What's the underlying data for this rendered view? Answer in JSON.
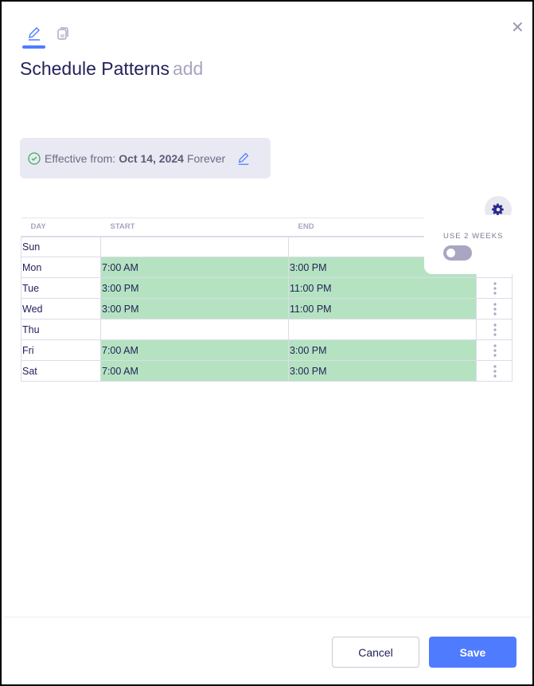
{
  "header": {
    "title": "Schedule Patterns",
    "subtitle": "add"
  },
  "effective": {
    "label": "Effective from:",
    "date": "Oct 14, 2024",
    "duration": "Forever"
  },
  "table": {
    "columns": [
      "DAY",
      "START",
      "END"
    ],
    "rows": [
      {
        "day": "Sun",
        "start": "",
        "end": ""
      },
      {
        "day": "Mon",
        "start": "7:00 AM",
        "end": "3:00 PM"
      },
      {
        "day": "Tue",
        "start": "3:00 PM",
        "end": "11:00 PM"
      },
      {
        "day": "Wed",
        "start": "3:00 PM",
        "end": "11:00 PM"
      },
      {
        "day": "Thu",
        "start": "",
        "end": ""
      },
      {
        "day": "Fri",
        "start": "7:00 AM",
        "end": "3:00 PM"
      },
      {
        "day": "Sat",
        "start": "7:00 AM",
        "end": "3:00 PM"
      }
    ]
  },
  "settings": {
    "use_two_weeks_label": "USE 2 WEEKS",
    "use_two_weeks": false
  },
  "footer": {
    "cancel": "Cancel",
    "save": "Save"
  },
  "colors": {
    "accent": "#4f7cff",
    "shift": "#b5e3c1",
    "title": "#23225a"
  }
}
